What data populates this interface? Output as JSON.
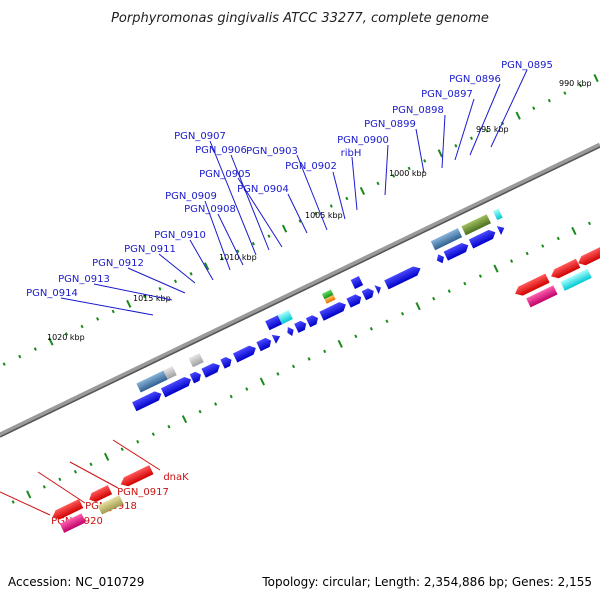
{
  "title": "Porphyromonas gingivalis ATCC 33277, complete genome",
  "footer": {
    "accession": "Accession: NC_010729",
    "summary": "Topology: circular; Length: 2,354,886 bp; Genes: 2,155"
  },
  "colors": {
    "forward_label": "#1a1acc",
    "reverse_label": "#cc1111",
    "forward_gene": "#0a0ae0",
    "reverse_gene": "#ee1111",
    "magenta_gene": "#e0207f",
    "cyan_gene": "#18e6e6",
    "backbone": "#888888",
    "tick": "#1a8a1a"
  },
  "kbp_markers": [
    "990 kbp",
    "995 kbp",
    "1000 kbp",
    "1005 kbp",
    "1010 kbp",
    "1015 kbp",
    "1020 kbp"
  ],
  "forward_gene_labels": [
    "PGN_0895",
    "PGN_0896",
    "PGN_0897",
    "PGN_0898",
    "PGN_0899",
    "PGN_0900",
    "ribH",
    "PGN_0902",
    "PGN_0903",
    "PGN_0904",
    "PGN_0905",
    "PGN_0906",
    "PGN_0907",
    "PGN_0908",
    "PGN_0909",
    "PGN_0910",
    "PGN_0911",
    "PGN_0912",
    "PGN_0913",
    "PGN_0914"
  ],
  "reverse_gene_labels": [
    "dnaK",
    "PGN_0917",
    "PGN_0918",
    "PGN_0920"
  ]
}
